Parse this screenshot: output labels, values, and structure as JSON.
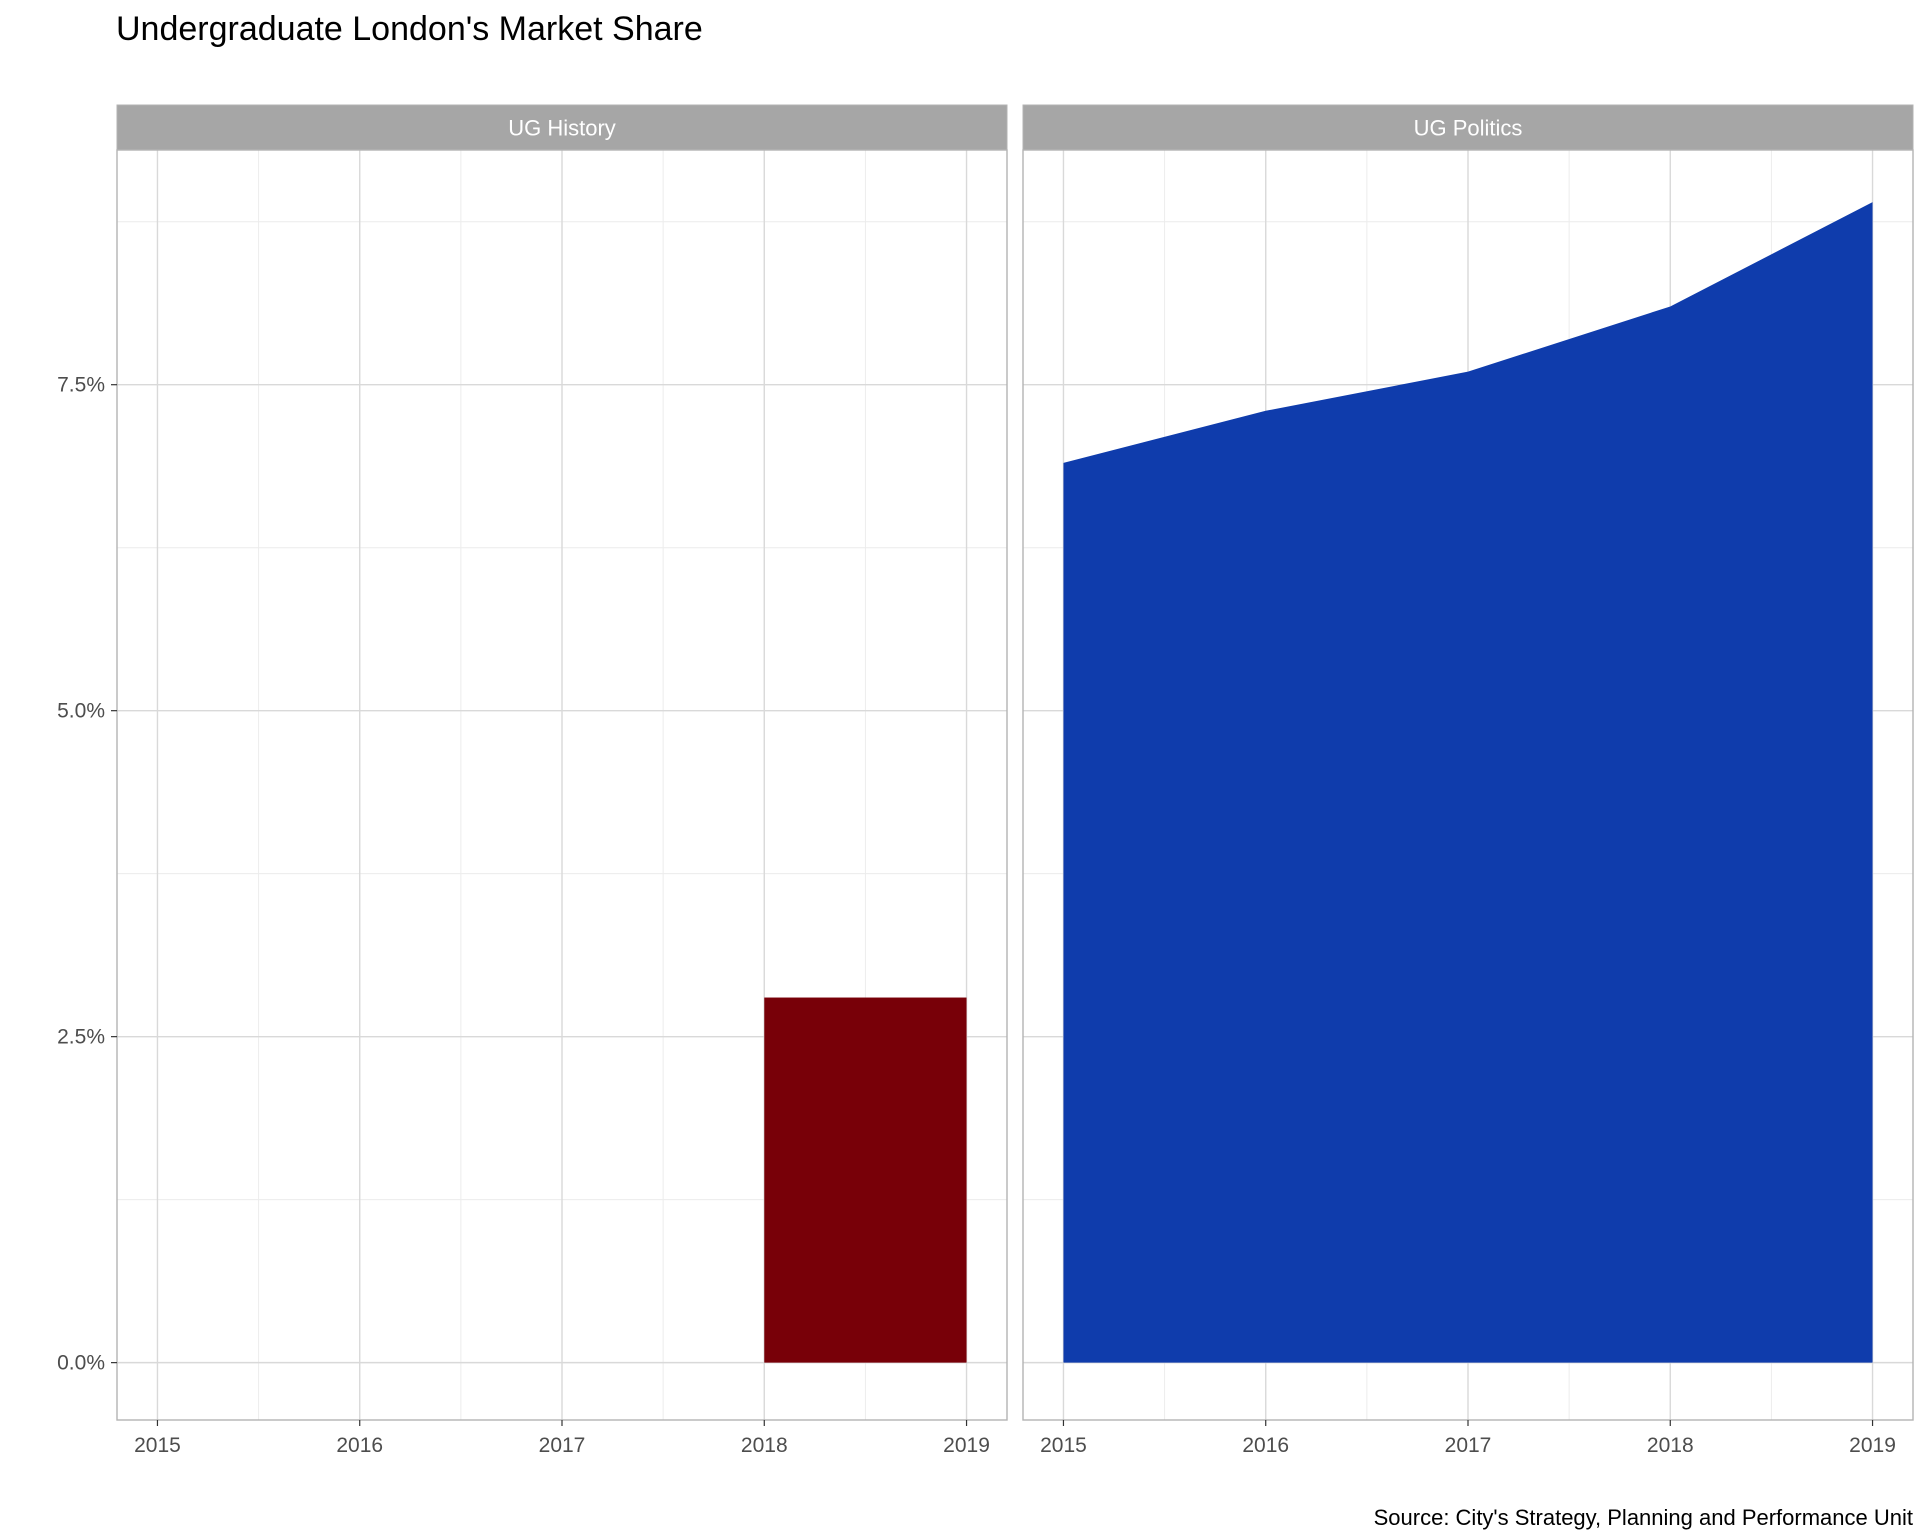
{
  "title": "Undergraduate London's Market Share",
  "caption": "Source: City's Strategy, Planning and Performance Unit",
  "colors": {
    "strip": "#a6a6a6",
    "history": "#780008",
    "politics": "#0f3cac",
    "grid_major": "#d9d9d9",
    "grid_minor": "#ececec",
    "border": "#b3b3b3"
  },
  "chart_data": [
    {
      "type": "bar",
      "panel": "UG History",
      "x": [
        2018.5
      ],
      "bar_span": [
        2018,
        2019
      ],
      "values": [
        2.8
      ],
      "xlim": [
        2014.8,
        2019.2
      ],
      "ylim": [
        -0.44,
        9.3
      ],
      "x_ticks": [
        "2015",
        "2016",
        "2017",
        "2018",
        "2019"
      ],
      "y_ticks": [
        "0.0%",
        "2.5%",
        "5.0%",
        "7.5%"
      ],
      "xlabel": "",
      "ylabel": "",
      "grid": true
    },
    {
      "type": "area",
      "panel": "UG Politics",
      "x": [
        2015,
        2016,
        2017,
        2018,
        2019
      ],
      "values": [
        6.9,
        7.3,
        7.6,
        8.1,
        8.9
      ],
      "xlim": [
        2014.8,
        2019.2
      ],
      "ylim": [
        -0.44,
        9.3
      ],
      "x_ticks": [
        "2015",
        "2016",
        "2017",
        "2018",
        "2019"
      ],
      "y_ticks": [
        "0.0%",
        "2.5%",
        "5.0%",
        "7.5%"
      ],
      "xlabel": "",
      "ylabel": "",
      "grid": true
    }
  ]
}
